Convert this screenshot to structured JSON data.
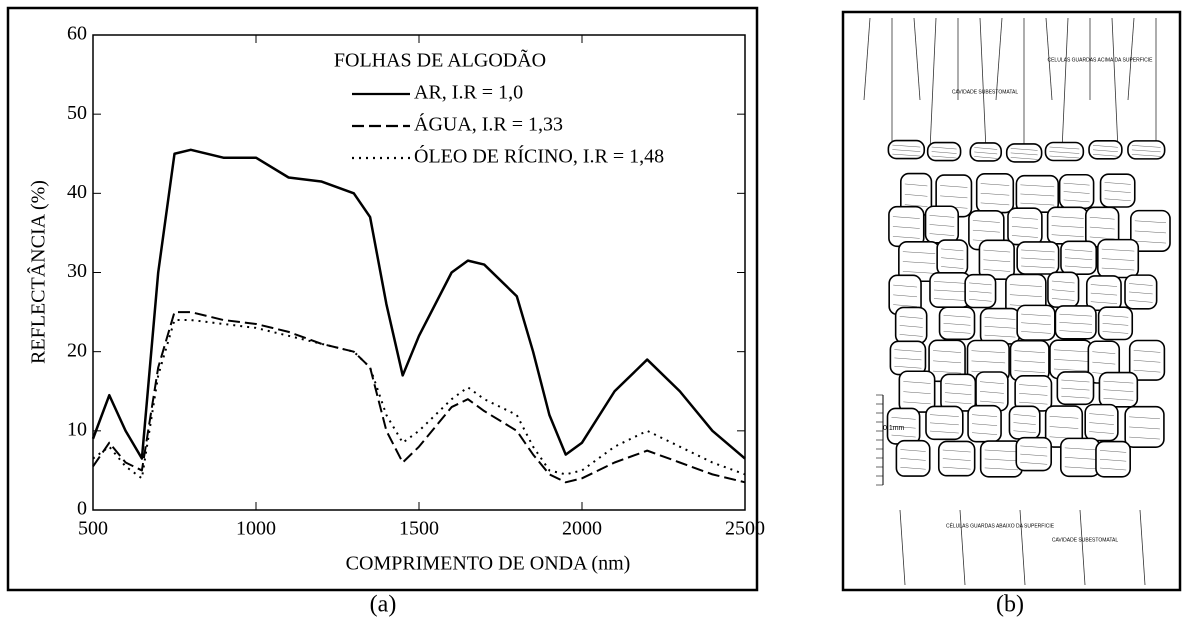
{
  "chart_data": {
    "type": "line",
    "xlabel": "COMPRIMENTO DE ONDA (nm)",
    "ylabel": "REFLECTÂNCIA (%)",
    "legend_title": "FOLHAS DE ALGODÃO",
    "x": [
      500,
      550,
      600,
      650,
      700,
      750,
      800,
      900,
      1000,
      1100,
      1200,
      1300,
      1350,
      1400,
      1450,
      1500,
      1600,
      1650,
      1700,
      1800,
      1850,
      1900,
      1950,
      2000,
      2100,
      2200,
      2300,
      2400,
      2500
    ],
    "series": [
      {
        "name": "AR, I.R = 1,0",
        "color": "#000000",
        "dash": "solid",
        "values": [
          9,
          14.5,
          10,
          6.5,
          30,
          45,
          45.5,
          44.5,
          44.5,
          42,
          41.5,
          40,
          37,
          26,
          17,
          22,
          30,
          31.5,
          31,
          27,
          20,
          12,
          7,
          8.5,
          15,
          19,
          15,
          10,
          6.5
        ]
      },
      {
        "name": "ÁGUA, I.R = 1,33",
        "color": "#000000",
        "dash": "dashed",
        "values": [
          5.5,
          8.5,
          6,
          5,
          18,
          25,
          25,
          24,
          23.5,
          22.5,
          21,
          20,
          18,
          10,
          6,
          8,
          13,
          14,
          12.5,
          10,
          7,
          4.5,
          3.5,
          4,
          6,
          7.5,
          6,
          4.5,
          3.5
        ]
      },
      {
        "name": "ÓLEO DE RÍCINO, I.R = 1,48",
        "color": "#000000",
        "dash": "dotted",
        "values": [
          6.5,
          8,
          5.5,
          4,
          17,
          24,
          24,
          23.5,
          23,
          22,
          21,
          20,
          18,
          12,
          8.5,
          10,
          14,
          15.5,
          14,
          12,
          8,
          5,
          4.5,
          5,
          8,
          10,
          8,
          6,
          4.5
        ]
      }
    ],
    "xlim": [
      500,
      2500
    ],
    "xticks": [
      500,
      1000,
      1500,
      2000,
      2500
    ],
    "ylim": [
      0,
      60
    ],
    "yticks": [
      0,
      10,
      20,
      30,
      40,
      50,
      60
    ],
    "grid": false,
    "legend": "top-right"
  },
  "captions": [
    "(a)",
    "(b)"
  ],
  "diagram": {
    "labels": [
      "CELULAS GUARDAS ACIMA DA SUPERFICIE",
      "CAVIDADE SUBESTOMATAL",
      "0.1mm",
      "CÉLULAS GUARDAS ABAIXO DA SUPERFICIE",
      "CAVIDADE SUBESTOMATAL"
    ]
  }
}
